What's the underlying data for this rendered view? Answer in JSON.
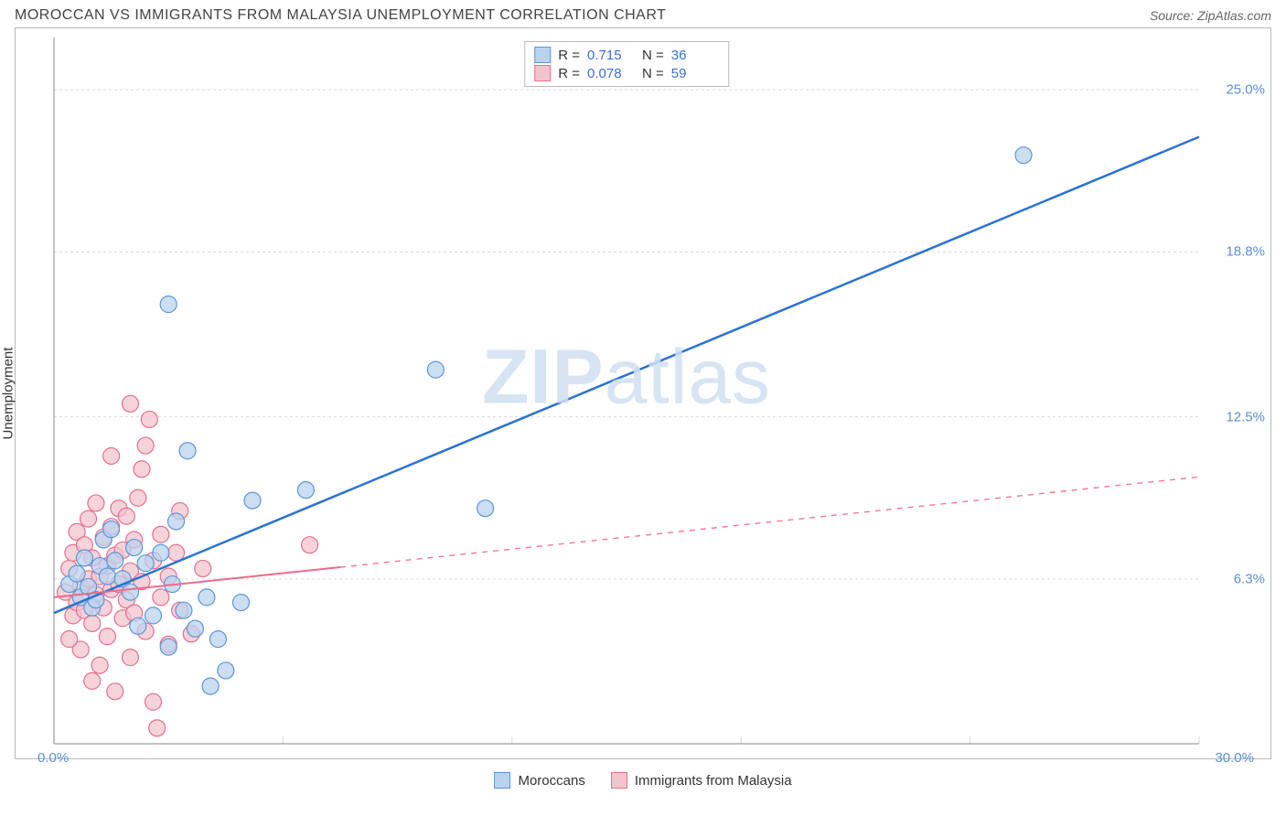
{
  "title": "MOROCCAN VS IMMIGRANTS FROM MALAYSIA UNEMPLOYMENT CORRELATION CHART",
  "source_label": "Source: ZipAtlas.com",
  "watermark": "ZIPatlas",
  "ylabel": "Unemployment",
  "chart": {
    "type": "scatter-regression",
    "background_color": "#ffffff",
    "border_color": "#b8b8b8",
    "grid_color": "#d9d9d9",
    "text_color": "#333333",
    "axis_value_color": "#5b8fd6",
    "title_fontsize": 16,
    "label_fontsize": 15,
    "tick_fontsize": 15,
    "xlim": [
      0,
      30
    ],
    "ylim": [
      0,
      27
    ],
    "x_ticks_minor": [
      0,
      6,
      12,
      18,
      24,
      30
    ],
    "x_tick_labels": [
      {
        "x": 0,
        "label": "0.0%"
      },
      {
        "x": 30,
        "label": "30.0%"
      }
    ],
    "y_grid_ticks": [
      6.3,
      12.5,
      18.8,
      25.0
    ],
    "y_tick_labels": [
      {
        "y": 6.3,
        "label": "6.3%"
      },
      {
        "y": 12.5,
        "label": "12.5%"
      },
      {
        "y": 18.8,
        "label": "18.8%"
      },
      {
        "y": 25.0,
        "label": "25.0%"
      }
    ],
    "series": [
      {
        "key": "moroccans",
        "label": "Moroccans",
        "marker_color_fill": "#b9d3ee",
        "marker_color_stroke": "#5e96d6",
        "marker_radius": 9,
        "marker_opacity": 0.75,
        "regression_color": "#2b72d3",
        "regression_width": 2.5,
        "regression_solid_until_x": 30,
        "regression": {
          "x1": 0,
          "y1": 5.0,
          "x2": 30,
          "y2": 23.2
        },
        "stats": {
          "R": "0.715",
          "N": "36"
        },
        "points": [
          [
            0.4,
            6.1
          ],
          [
            0.6,
            6.5
          ],
          [
            0.7,
            5.6
          ],
          [
            0.8,
            7.1
          ],
          [
            0.9,
            6.0
          ],
          [
            1.0,
            5.2
          ],
          [
            1.2,
            6.8
          ],
          [
            1.3,
            7.8
          ],
          [
            1.4,
            6.4
          ],
          [
            1.5,
            8.2
          ],
          [
            1.6,
            7.0
          ],
          [
            1.8,
            6.3
          ],
          [
            2.0,
            5.8
          ],
          [
            2.1,
            7.5
          ],
          [
            2.2,
            4.5
          ],
          [
            2.4,
            6.9
          ],
          [
            2.6,
            4.9
          ],
          [
            2.8,
            7.3
          ],
          [
            3.0,
            3.7
          ],
          [
            3.1,
            6.1
          ],
          [
            3.2,
            8.5
          ],
          [
            3.4,
            5.1
          ],
          [
            3.5,
            11.2
          ],
          [
            3.7,
            4.4
          ],
          [
            4.0,
            5.6
          ],
          [
            4.1,
            2.2
          ],
          [
            4.3,
            4.0
          ],
          [
            4.5,
            2.8
          ],
          [
            4.9,
            5.4
          ],
          [
            3.0,
            16.8
          ],
          [
            5.2,
            9.3
          ],
          [
            6.6,
            9.7
          ],
          [
            10.0,
            14.3
          ],
          [
            11.3,
            9.0
          ],
          [
            25.4,
            22.5
          ],
          [
            1.1,
            5.5
          ]
        ]
      },
      {
        "key": "malaysia",
        "label": "Immigrants from Malaysia",
        "marker_color_fill": "#f3c4cd",
        "marker_color_stroke": "#e3708f",
        "marker_radius": 9,
        "marker_opacity": 0.75,
        "regression_color": "#ed6a8c",
        "regression_width": 2,
        "regression_solid_until_x": 7.5,
        "regression_dash": "6 6",
        "regression": {
          "x1": 0,
          "y1": 5.6,
          "x2": 30,
          "y2": 10.2
        },
        "stats": {
          "R": "0.078",
          "N": "59"
        },
        "points": [
          [
            0.3,
            5.8
          ],
          [
            0.4,
            6.7
          ],
          [
            0.5,
            4.9
          ],
          [
            0.5,
            7.3
          ],
          [
            0.6,
            5.4
          ],
          [
            0.6,
            8.1
          ],
          [
            0.7,
            6.0
          ],
          [
            0.7,
            3.6
          ],
          [
            0.8,
            7.6
          ],
          [
            0.8,
            5.1
          ],
          [
            0.9,
            6.3
          ],
          [
            0.9,
            8.6
          ],
          [
            1.0,
            4.6
          ],
          [
            1.0,
            7.1
          ],
          [
            1.1,
            5.7
          ],
          [
            1.1,
            9.2
          ],
          [
            1.2,
            6.4
          ],
          [
            1.2,
            3.0
          ],
          [
            1.3,
            7.9
          ],
          [
            1.3,
            5.2
          ],
          [
            1.4,
            6.8
          ],
          [
            1.4,
            4.1
          ],
          [
            1.5,
            8.3
          ],
          [
            1.5,
            5.9
          ],
          [
            1.6,
            7.2
          ],
          [
            1.6,
            2.0
          ],
          [
            1.7,
            6.1
          ],
          [
            1.7,
            9.0
          ],
          [
            1.8,
            4.8
          ],
          [
            1.8,
            7.4
          ],
          [
            1.9,
            5.5
          ],
          [
            1.9,
            8.7
          ],
          [
            2.0,
            6.6
          ],
          [
            2.0,
            3.3
          ],
          [
            2.1,
            7.8
          ],
          [
            2.1,
            5.0
          ],
          [
            2.2,
            9.4
          ],
          [
            2.3,
            6.2
          ],
          [
            2.4,
            4.3
          ],
          [
            2.4,
            11.4
          ],
          [
            2.5,
            12.4
          ],
          [
            2.6,
            7.0
          ],
          [
            2.6,
            1.6
          ],
          [
            2.8,
            5.6
          ],
          [
            2.8,
            8.0
          ],
          [
            3.0,
            6.4
          ],
          [
            3.0,
            3.8
          ],
          [
            3.2,
            7.3
          ],
          [
            3.3,
            5.1
          ],
          [
            3.3,
            8.9
          ],
          [
            3.6,
            4.2
          ],
          [
            3.9,
            6.7
          ],
          [
            2.7,
            0.6
          ],
          [
            2.0,
            13.0
          ],
          [
            1.5,
            11.0
          ],
          [
            2.3,
            10.5
          ],
          [
            6.7,
            7.6
          ],
          [
            1.0,
            2.4
          ],
          [
            0.4,
            4.0
          ]
        ]
      }
    ],
    "legend_box": {
      "border_color": "#bbbbbb",
      "background": "#ffffff"
    }
  },
  "bottom_legend": [
    {
      "key": "moroccans",
      "label": "Moroccans"
    },
    {
      "key": "malaysia",
      "label": "Immigrants from Malaysia"
    }
  ]
}
